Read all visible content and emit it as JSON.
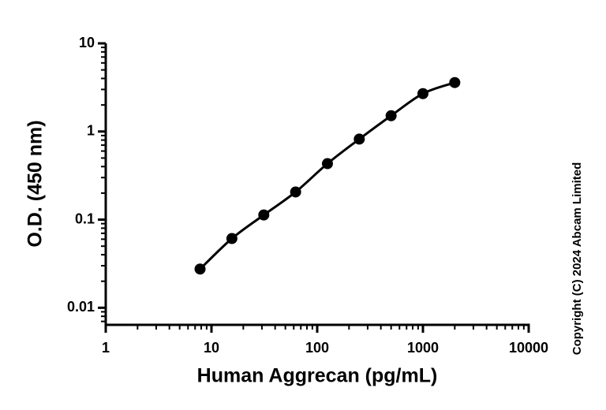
{
  "chart_data": {
    "type": "scatter",
    "x_label": "Human Aggrecan (pg/mL)",
    "y_label": "O.D. (450 nm)",
    "copyright": "Copyright (C) 2024 Abcam Limited",
    "x": [
      7.8,
      15.6,
      31.25,
      62.5,
      125,
      250,
      500,
      1000,
      2000
    ],
    "series": [
      {
        "color": "#000000",
        "values": [
          0.0275,
          0.061,
          0.113,
          0.206,
          0.432,
          0.82,
          1.51,
          2.69,
          3.59
        ]
      }
    ],
    "xlim": [
      1,
      10000
    ],
    "ylim": [
      0.0064,
      10
    ],
    "xticks": [
      1,
      10,
      100,
      1000,
      10000
    ],
    "yticks": [
      0.01,
      0.1,
      1,
      10
    ],
    "xscale": "log",
    "yscale": "log",
    "curve": true
  }
}
